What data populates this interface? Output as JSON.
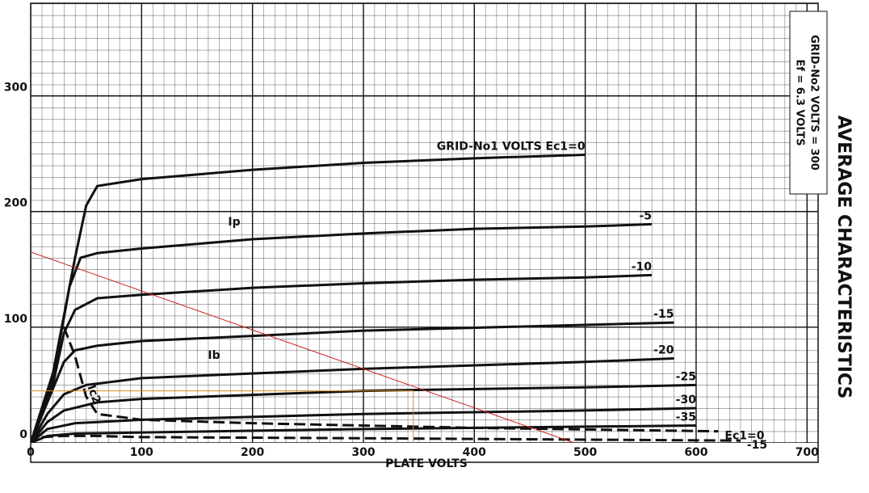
{
  "chart_data": {
    "type": "line",
    "title": "AVERAGE CHARACTERISTICS",
    "notes": [
      "Ef = 6.3 VOLTS",
      "GRID-No2 VOLTS = 300"
    ],
    "x_label": "PLATE VOLTS",
    "xlim": [
      0,
      710
    ],
    "ylim": [
      0,
      380
    ],
    "xticks": [
      0,
      100,
      200,
      300,
      400,
      500,
      600,
      700
    ],
    "yticks": [
      0,
      100,
      200,
      300
    ],
    "grid": true,
    "annotations": [
      "Ip",
      "Ib",
      "Ic2"
    ],
    "series": [
      {
        "name": "GRID-No1 VOLTS Ec1=0",
        "color": "#111111",
        "x": [
          0,
          20,
          40,
          50,
          60,
          100,
          200,
          300,
          400,
          500
        ],
        "values": [
          0,
          60,
          160,
          205,
          222,
          228,
          236,
          242,
          246,
          249
        ]
      },
      {
        "name": "-5",
        "color": "#111111",
        "x": [
          0,
          20,
          35,
          45,
          60,
          100,
          200,
          300,
          400,
          500,
          560
        ],
        "values": [
          0,
          55,
          135,
          160,
          164,
          168,
          176,
          181,
          185,
          187,
          189
        ]
      },
      {
        "name": "-10",
        "color": "#111111",
        "x": [
          0,
          20,
          30,
          40,
          60,
          100,
          200,
          300,
          400,
          500,
          560
        ],
        "values": [
          0,
          50,
          95,
          115,
          125,
          128,
          134,
          138,
          141,
          143,
          145
        ]
      },
      {
        "name": "-15",
        "color": "#111111",
        "x": [
          0,
          15,
          30,
          40,
          60,
          100,
          300,
          500,
          580
        ],
        "values": [
          0,
          35,
          70,
          80,
          84,
          88,
          97,
          102,
          104
        ]
      },
      {
        "name": "-20",
        "color": "#111111",
        "x": [
          0,
          15,
          30,
          50,
          100,
          300,
          500,
          580
        ],
        "values": [
          0,
          25,
          42,
          50,
          56,
          64,
          70,
          73
        ]
      },
      {
        "name": "-25",
        "color": "#111111",
        "x": [
          0,
          15,
          30,
          60,
          100,
          300,
          500,
          600
        ],
        "values": [
          0,
          18,
          28,
          35,
          38,
          45,
          48,
          50
        ]
      },
      {
        "name": "-30",
        "color": "#111111",
        "x": [
          0,
          15,
          40,
          100,
          300,
          500,
          600
        ],
        "values": [
          0,
          12,
          17,
          20,
          25,
          28,
          30
        ]
      },
      {
        "name": "-35",
        "color": "#111111",
        "x": [
          0,
          15,
          40,
          100,
          300,
          600
        ],
        "values": [
          0,
          6,
          8,
          9,
          12,
          15
        ]
      },
      {
        "name": "Ec1=0",
        "color": "#111111",
        "dashed": true,
        "x": [
          30,
          40,
          50,
          60,
          100,
          200,
          400,
          620
        ],
        "values": [
          100,
          75,
          40,
          25,
          20,
          17,
          13,
          10
        ]
      },
      {
        "name": "-15",
        "color": "#111111",
        "dashed": true,
        "x": [
          10,
          30,
          60,
          100,
          300,
          640
        ],
        "values": [
          5,
          6,
          6,
          5,
          4,
          2
        ]
      },
      {
        "color": "#cc2222",
        "x": [
          0,
          490
        ],
        "values": [
          165,
          0
        ]
      },
      {
        "color": "#e08a1e",
        "x": [
          0,
          345
        ],
        "values": [
          45,
          45
        ]
      },
      {
        "color": "#e08a1e",
        "x": [
          345,
          345
        ],
        "values": [
          45,
          0
        ]
      }
    ]
  }
}
